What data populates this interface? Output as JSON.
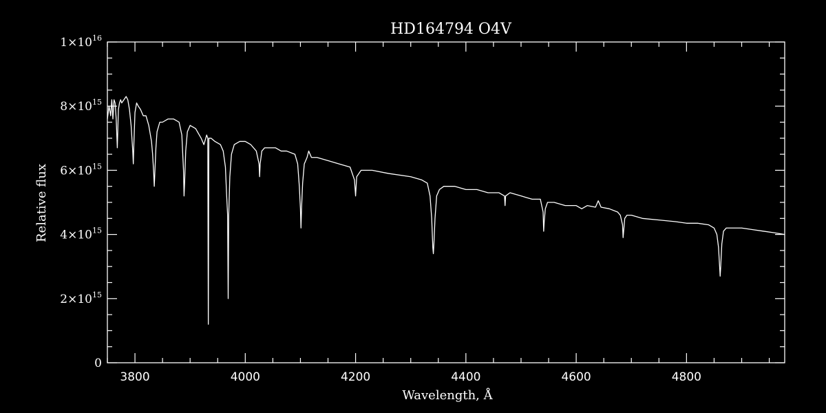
{
  "chart_data": {
    "type": "line",
    "title": "HD164794   O4V",
    "xlabel": "Wavelength, Å",
    "ylabel": "Relative flux",
    "xlim": [
      3750,
      4978
    ],
    "ylim": [
      0,
      1e+16
    ],
    "grid": false,
    "background": "#000000",
    "foreground": "#ffffff",
    "x_ticks": [
      {
        "value": 3800,
        "label": "3800"
      },
      {
        "value": 4000,
        "label": "4000"
      },
      {
        "value": 4200,
        "label": "4200"
      },
      {
        "value": 4400,
        "label": "4400"
      },
      {
        "value": 4600,
        "label": "4600"
      },
      {
        "value": 4800,
        "label": "4800"
      }
    ],
    "y_ticks": [
      {
        "value": 0,
        "mantissa": "0",
        "exponent": ""
      },
      {
        "value": 2000000000000000.0,
        "mantissa": "2×10",
        "exponent": "15"
      },
      {
        "value": 4000000000000000.0,
        "mantissa": "4×10",
        "exponent": "15"
      },
      {
        "value": 6000000000000000.0,
        "mantissa": "6×10",
        "exponent": "15"
      },
      {
        "value": 8000000000000000.0,
        "mantissa": "8×10",
        "exponent": "15"
      },
      {
        "value": 1e+16,
        "mantissa": "1×10",
        "exponent": "16"
      }
    ],
    "series": [
      {
        "x": [
          3750,
          3753,
          3756,
          3758,
          3760,
          3762,
          3764,
          3766,
          3768,
          3770,
          3772,
          3774,
          3776,
          3780,
          3784,
          3787,
          3790,
          3793,
          3796,
          3797,
          3798,
          3800,
          3803,
          3806,
          3810,
          3815,
          3820,
          3825,
          3830,
          3832,
          3834,
          3835,
          3836,
          3838,
          3840,
          3845,
          3850,
          3860,
          3870,
          3880,
          3885,
          3888,
          3889,
          3890,
          3892,
          3895,
          3900,
          3910,
          3920,
          3925,
          3930,
          3932,
          3933,
          3934,
          3935,
          3938,
          3945,
          3955,
          3960,
          3964,
          3966,
          3968,
          3969,
          3970,
          3972,
          3975,
          3980,
          3990,
          4000,
          4010,
          4020,
          4025,
          4026,
          4027,
          4030,
          4035,
          4045,
          4055,
          4065,
          4075,
          4090,
          4095,
          4098,
          4100,
          4101,
          4102,
          4104,
          4107,
          4112,
          4115,
          4120,
          4130,
          4150,
          4170,
          4190,
          4198,
          4200,
          4202,
          4210,
          4230,
          4260,
          4300,
          4320,
          4330,
          4335,
          4338,
          4340,
          4341,
          4342,
          4344,
          4347,
          4352,
          4360,
          4380,
          4400,
          4420,
          4440,
          4460,
          4470,
          4471,
          4472,
          4480,
          4500,
          4520,
          4535,
          4540,
          4541,
          4542,
          4544,
          4548,
          4560,
          4580,
          4600,
          4610,
          4620,
          4635,
          4640,
          4645,
          4660,
          4675,
          4680,
          4684,
          4685,
          4686,
          4688,
          4692,
          4700,
          4720,
          4750,
          4780,
          4800,
          4820,
          4840,
          4850,
          4855,
          4858,
          4860,
          4861,
          4862,
          4864,
          4867,
          4872,
          4880,
          4900,
          4920,
          4940,
          4960,
          4978
        ],
        "y": [
          7600000000000000.0,
          8000000000000000.0,
          7700000000000000.0,
          8200000000000000.0,
          7600000000000000.0,
          8200000000000000.0,
          8100000000000000.0,
          7600000000000000.0,
          6700000000000000.0,
          7900000000000000.0,
          8100000000000000.0,
          8200000000000000.0,
          8100000000000000.0,
          8200000000000000.0,
          8300000000000000.0,
          8200000000000000.0,
          7900000000000000.0,
          7400000000000000.0,
          6600000000000000.0,
          6200000000000000.0,
          6800000000000000.0,
          7800000000000000.0,
          8100000000000000.0,
          8000000000000000.0,
          7900000000000000.0,
          7700000000000000.0,
          7700000000000000.0,
          7400000000000000.0,
          6900000000000000.0,
          6500000000000000.0,
          5900000000000000.0,
          5500000000000000.0,
          5900000000000000.0,
          6700000000000000.0,
          7200000000000000.0,
          7500000000000000.0,
          7500000000000000.0,
          7600000000000000.0,
          7600000000000000.0,
          7500000000000000.0,
          7100000000000000.0,
          6000000000000000.0,
          5200000000000000.0,
          5600000000000000.0,
          6600000000000000.0,
          7200000000000000.0,
          7400000000000000.0,
          7300000000000000.0,
          7000000000000000.0,
          6800000000000000.0,
          7100000000000000.0,
          7000000000000000.0,
          1200000000000000.0,
          7000000000000000.0,
          7000000000000000.0,
          7000000000000000.0,
          6900000000000000.0,
          6800000000000000.0,
          6600000000000000.0,
          6100000000000000.0,
          5300000000000000.0,
          4600000000000000.0,
          2000000000000000.0,
          4600000000000000.0,
          5800000000000000.0,
          6500000000000000.0,
          6800000000000000.0,
          6900000000000000.0,
          6900000000000000.0,
          6800000000000000.0,
          6600000000000000.0,
          6200000000000000.0,
          5800000000000000.0,
          6200000000000000.0,
          6600000000000000.0,
          6700000000000000.0,
          6700000000000000.0,
          6700000000000000.0,
          6600000000000000.0,
          6600000000000000.0,
          6500000000000000.0,
          6200000000000000.0,
          5500000000000000.0,
          4800000000000000.0,
          4200000000000000.0,
          4800000000000000.0,
          5600000000000000.0,
          6200000000000000.0,
          6400000000000000.0,
          6600000000000000.0,
          6400000000000000.0,
          6400000000000000.0,
          6300000000000000.0,
          6200000000000000.0,
          6100000000000000.0,
          5700000000000000.0,
          5200000000000000.0,
          5800000000000000.0,
          6000000000000000.0,
          6000000000000000.0,
          5900000000000000.0,
          5800000000000000.0,
          5700000000000000.0,
          5600000000000000.0,
          5200000000000000.0,
          4500000000000000.0,
          3600000000000000.0,
          3400000000000000.0,
          3700000000000000.0,
          4500000000000000.0,
          5200000000000000.0,
          5400000000000000.0,
          5500000000000000.0,
          5500000000000000.0,
          5400000000000000.0,
          5400000000000000.0,
          5300000000000000.0,
          5300000000000000.0,
          5200000000000000.0,
          4900000000000000.0,
          5200000000000000.0,
          5300000000000000.0,
          5200000000000000.0,
          5100000000000000.0,
          5100000000000000.0,
          4700000000000000.0,
          4100000000000000.0,
          4400000000000000.0,
          4800000000000000.0,
          5000000000000000.0,
          5000000000000000.0,
          4900000000000000.0,
          4900000000000000.0,
          4800000000000000.0,
          4900000000000000.0,
          4850000000000000.0,
          5050000000000000.0,
          4850000000000000.0,
          4800000000000000.0,
          4700000000000000.0,
          4600000000000000.0,
          4300000000000000.0,
          3900000000000000.0,
          4100000000000000.0,
          4500000000000000.0,
          4600000000000000.0,
          4600000000000000.0,
          4500000000000000.0,
          4450000000000000.0,
          4400000000000000.0,
          4350000000000000.0,
          4350000000000000.0,
          4300000000000000.0,
          4200000000000000.0,
          4000000000000000.0,
          3600000000000000.0,
          3000000000000000.0,
          2700000000000000.0,
          3000000000000000.0,
          3700000000000000.0,
          4100000000000000.0,
          4200000000000000.0,
          4200000000000000.0,
          4200000000000000.0,
          4150000000000000.0,
          4100000000000000.0,
          4050000000000000.0,
          4000000000000000.0
        ]
      }
    ]
  }
}
